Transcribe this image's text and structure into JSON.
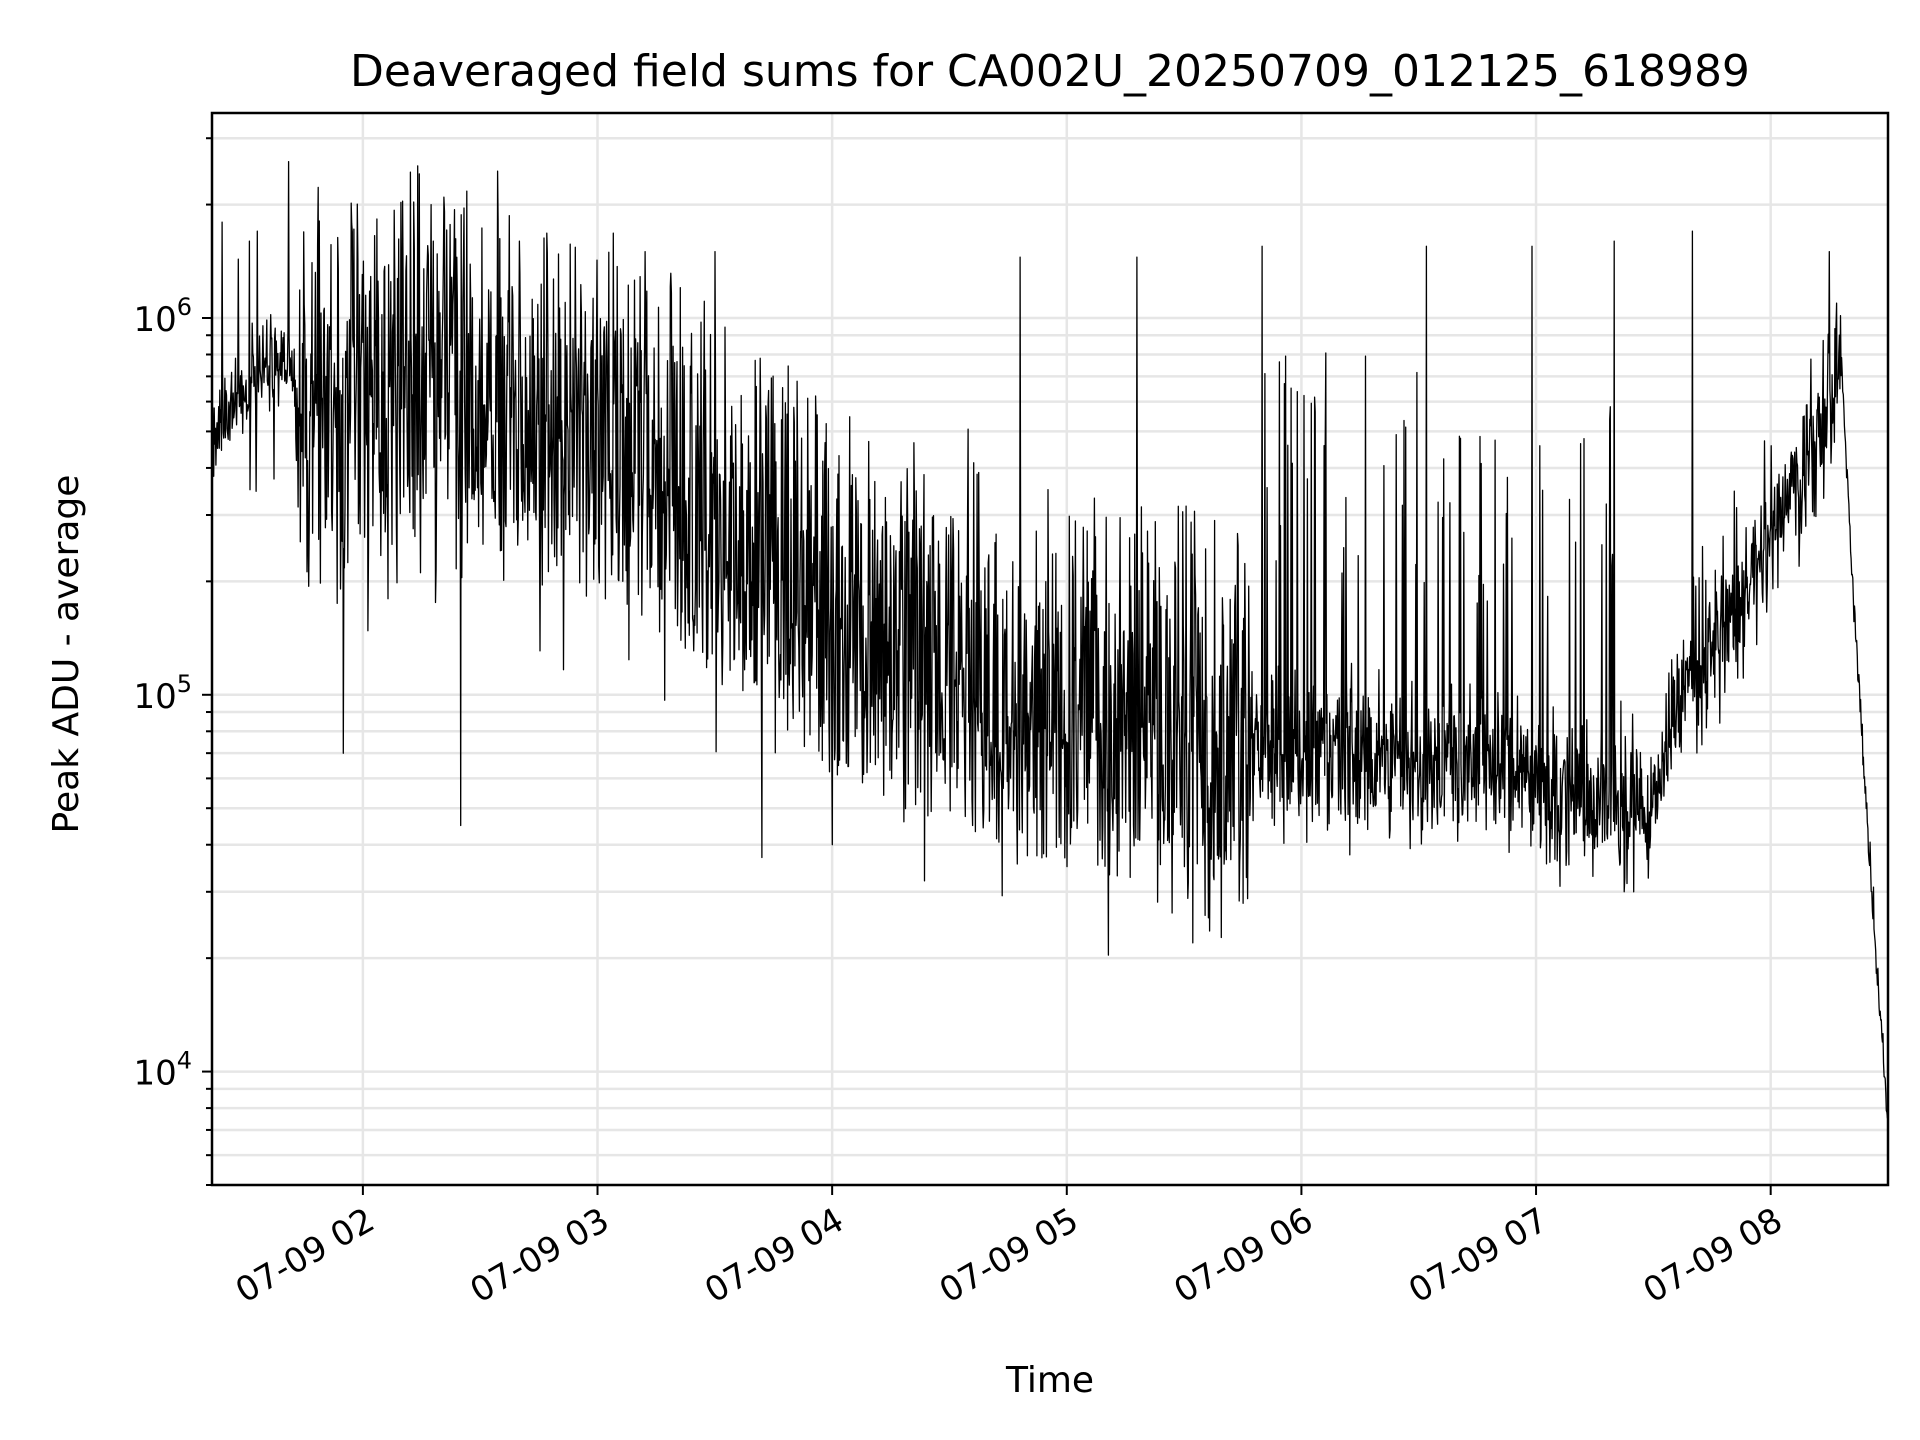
{
  "chart_data": {
    "type": "line",
    "title": "Deaveraged field sums for CA002U_20250709_012125_618989",
    "xlabel": "Time",
    "ylabel": "Peak ADU - average",
    "yscale": "log",
    "ylim": [
      5000,
      3500000
    ],
    "xlim": [
      "2025-07-09 01:21:25",
      "2025-07-09 08:30:00"
    ],
    "grid": true,
    "x_ticks": [
      {
        "value": "2025-07-09 02:00",
        "label": "07-09 02"
      },
      {
        "value": "2025-07-09 03:00",
        "label": "07-09 03"
      },
      {
        "value": "2025-07-09 04:00",
        "label": "07-09 04"
      },
      {
        "value": "2025-07-09 05:00",
        "label": "07-09 05"
      },
      {
        "value": "2025-07-09 06:00",
        "label": "07-09 06"
      },
      {
        "value": "2025-07-09 07:00",
        "label": "07-09 07"
      },
      {
        "value": "2025-07-09 08:00",
        "label": "07-09 08"
      }
    ],
    "y_ticks": [
      {
        "value": 10000,
        "base": "10",
        "exp": "4"
      },
      {
        "value": 100000,
        "base": "10",
        "exp": "5"
      },
      {
        "value": 1000000,
        "base": "10",
        "exp": "6"
      }
    ],
    "series": [
      {
        "color": "#000000",
        "baseline_profile": {
          "time": [
            "2025-07-09 01:21",
            "2025-07-09 01:30",
            "2025-07-09 01:40",
            "2025-07-09 01:50",
            "2025-07-09 02:00",
            "2025-07-09 02:15",
            "2025-07-09 02:30",
            "2025-07-09 02:45",
            "2025-07-09 03:00",
            "2025-07-09 03:30",
            "2025-07-09 04:00",
            "2025-07-09 04:30",
            "2025-07-09 05:00",
            "2025-07-09 05:30",
            "2025-07-09 06:00",
            "2025-07-09 06:30",
            "2025-07-09 07:00",
            "2025-07-09 07:15",
            "2025-07-09 07:30",
            "2025-07-09 07:35",
            "2025-07-09 07:45",
            "2025-07-09 07:55",
            "2025-07-09 08:05",
            "2025-07-09 08:15",
            "2025-07-09 08:18",
            "2025-07-09 08:21",
            "2025-07-09 08:24",
            "2025-07-09 08:27",
            "2025-07-09 08:30"
          ],
          "value": [
            450000,
            650000,
            780000,
            550000,
            550000,
            700000,
            600000,
            500000,
            450000,
            300000,
            150000,
            110000,
            85000,
            80000,
            70000,
            65000,
            60000,
            50000,
            50000,
            85000,
            130000,
            200000,
            350000,
            500000,
            800000,
            200000,
            60000,
            20000,
            7500
          ]
        },
        "peaks": [
          {
            "time": "2025-07-09 01:31",
            "value": 1600000
          },
          {
            "time": "2025-07-09 01:33",
            "value": 1700000
          },
          {
            "time": "2025-07-09 01:41",
            "value": 2600000
          },
          {
            "time": "2025-07-09 02:18",
            "value": 1600000
          },
          {
            "time": "2025-07-09 02:40",
            "value": 1600000
          },
          {
            "time": "2025-07-09 03:30",
            "value": 1500000
          },
          {
            "time": "2025-07-09 04:48",
            "value": 1450000
          },
          {
            "time": "2025-07-09 05:18",
            "value": 1450000
          },
          {
            "time": "2025-07-09 05:50",
            "value": 1550000
          },
          {
            "time": "2025-07-09 06:32",
            "value": 1550000
          },
          {
            "time": "2025-07-09 06:59",
            "value": 1550000
          },
          {
            "time": "2025-07-09 07:20",
            "value": 1600000
          },
          {
            "time": "2025-07-09 07:40",
            "value": 1700000
          },
          {
            "time": "2025-07-09 08:15",
            "value": 1500000
          }
        ],
        "troughs": [
          {
            "time": "2025-07-09 01:55",
            "value": 70000
          },
          {
            "time": "2025-07-09 02:25",
            "value": 45000
          },
          {
            "time": "2025-07-09 03:42",
            "value": 37000
          },
          {
            "time": "2025-07-09 04:00",
            "value": 40000
          },
          {
            "time": "2025-07-09 05:00",
            "value": 35000
          },
          {
            "time": "2025-07-09 07:25",
            "value": 30000
          },
          {
            "time": "2025-07-09 08:30",
            "value": 7500
          }
        ]
      }
    ]
  }
}
